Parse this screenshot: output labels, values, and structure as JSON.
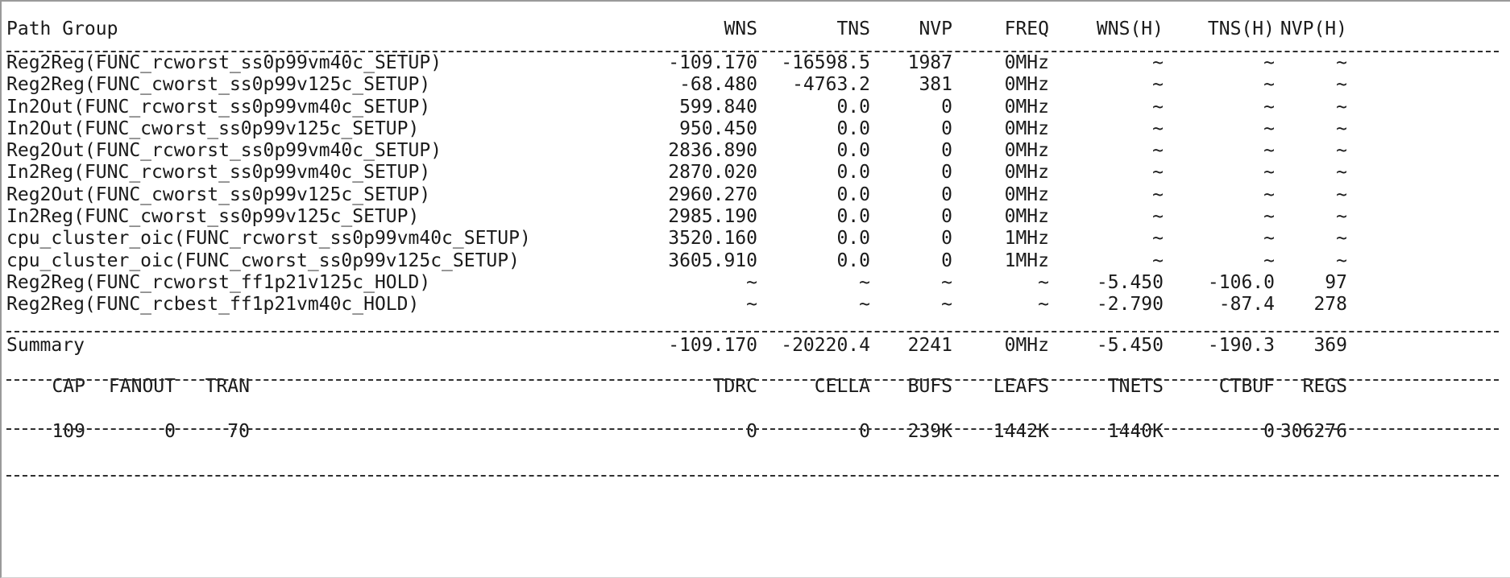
{
  "report": {
    "header": [
      "Path Group",
      "WNS",
      "TNS",
      "NVP",
      "FREQ",
      "WNS(H)",
      "TNS(H)",
      "NVP(H)"
    ],
    "rows": [
      [
        "Reg2Reg(FUNC_rcworst_ss0p99vm40c_SETUP)",
        "-109.170",
        "-16598.5",
        "1987",
        "0MHz",
        "~",
        "~",
        "~"
      ],
      [
        "Reg2Reg(FUNC_cworst_ss0p99v125c_SETUP)",
        "-68.480",
        "-4763.2",
        "381",
        "0MHz",
        "~",
        "~",
        "~"
      ],
      [
        "In2Out(FUNC_rcworst_ss0p99vm40c_SETUP)",
        "599.840",
        "0.0",
        "0",
        "0MHz",
        "~",
        "~",
        "~"
      ],
      [
        "In2Out(FUNC_cworst_ss0p99v125c_SETUP)",
        "950.450",
        "0.0",
        "0",
        "0MHz",
        "~",
        "~",
        "~"
      ],
      [
        "Reg2Out(FUNC_rcworst_ss0p99vm40c_SETUP)",
        "2836.890",
        "0.0",
        "0",
        "0MHz",
        "~",
        "~",
        "~"
      ],
      [
        "In2Reg(FUNC_rcworst_ss0p99vm40c_SETUP)",
        "2870.020",
        "0.0",
        "0",
        "0MHz",
        "~",
        "~",
        "~"
      ],
      [
        "Reg2Out(FUNC_cworst_ss0p99v125c_SETUP)",
        "2960.270",
        "0.0",
        "0",
        "0MHz",
        "~",
        "~",
        "~"
      ],
      [
        "In2Reg(FUNC_cworst_ss0p99v125c_SETUP)",
        "2985.190",
        "0.0",
        "0",
        "0MHz",
        "~",
        "~",
        "~"
      ],
      [
        "cpu_cluster_oic(FUNC_rcworst_ss0p99vm40c_SETUP)",
        "3520.160",
        "0.0",
        "0",
        "1MHz",
        "~",
        "~",
        "~"
      ],
      [
        "cpu_cluster_oic(FUNC_cworst_ss0p99v125c_SETUP)",
        "3605.910",
        "0.0",
        "0",
        "1MHz",
        "~",
        "~",
        "~"
      ],
      [
        "Reg2Reg(FUNC_rcworst_ff1p21v125c_HOLD)",
        "~",
        "~",
        "~",
        "~",
        "-5.450",
        "-106.0",
        "97"
      ],
      [
        "Reg2Reg(FUNC_rcbest_ff1p21vm40c_HOLD)",
        "~",
        "~",
        "~",
        "~",
        "-2.790",
        "-87.4",
        "278"
      ]
    ],
    "summary": [
      "Summary",
      "-109.170",
      "-20220.4",
      "2241",
      "0MHz",
      "-5.450",
      "-190.3",
      "369"
    ],
    "stats_header": {
      "cap": "CAP",
      "fanout": "FANOUT",
      "tran": "TRAN",
      "cols": [
        "TDRC",
        "CELLA",
        "BUFS",
        "LEAFS",
        "TNETS",
        "CTBUF",
        "REGS"
      ]
    },
    "stats_values": {
      "cap": "109",
      "fanout": "0",
      "tran": "70",
      "cols": [
        "0",
        "0",
        "239K",
        "1442K",
        "1440K",
        "0",
        "306276"
      ]
    }
  }
}
